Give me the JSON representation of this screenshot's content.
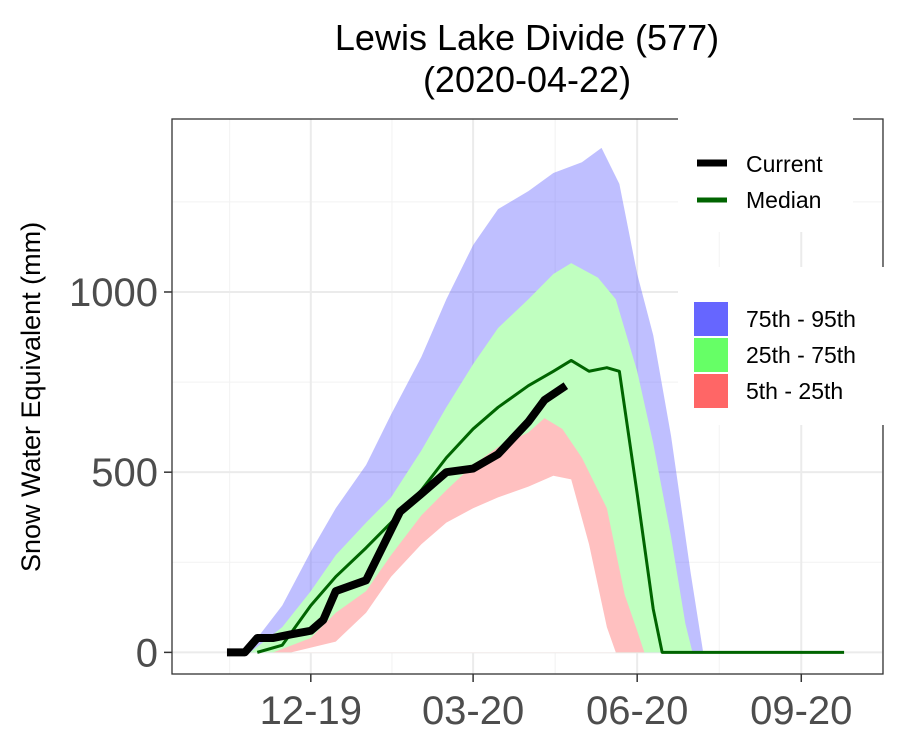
{
  "chart_data": {
    "type": "area",
    "title_line1": "Lewis Lake Divide (577)",
    "title_line2": "(2020-04-22)",
    "xlabel": "",
    "ylabel": "Snow Water Equivalent (mm)",
    "x_axis": {
      "start": "2019-10-01",
      "end": "2020-09-30",
      "ticks": [
        "2019-12-01",
        "2020-03-01",
        "2020-06-01",
        "2020-09-01"
      ],
      "tick_labels": [
        "12-19",
        "03-20",
        "06-20",
        "09-20"
      ]
    },
    "ylim": [
      -60,
      1480
    ],
    "y_ticks": [
      0,
      500,
      1000
    ],
    "grid": true,
    "legend": {
      "placement": "top-right",
      "lines": [
        {
          "label": "Current",
          "color": "#000000"
        },
        {
          "label": "Median",
          "color": "#006400"
        }
      ],
      "bands": [
        {
          "label": "75th - 95th",
          "color": "#6666ff"
        },
        {
          "label": "25th - 75th",
          "color": "#66ff66"
        },
        {
          "label": "5th - 25th",
          "color": "#ff6666"
        }
      ]
    },
    "bands": {
      "p95": [
        {
          "x": "2019-10-25",
          "y": 0
        },
        {
          "x": "2019-11-01",
          "y": 40
        },
        {
          "x": "2019-11-15",
          "y": 130
        },
        {
          "x": "2019-12-01",
          "y": 280
        },
        {
          "x": "2019-12-15",
          "y": 400
        },
        {
          "x": "2020-01-01",
          "y": 520
        },
        {
          "x": "2020-01-15",
          "y": 660
        },
        {
          "x": "2020-02-01",
          "y": 820
        },
        {
          "x": "2020-02-15",
          "y": 980
        },
        {
          "x": "2020-03-01",
          "y": 1130
        },
        {
          "x": "2020-03-15",
          "y": 1230
        },
        {
          "x": "2020-04-01",
          "y": 1280
        },
        {
          "x": "2020-04-15",
          "y": 1330
        },
        {
          "x": "2020-05-01",
          "y": 1360
        },
        {
          "x": "2020-05-12",
          "y": 1400
        },
        {
          "x": "2020-05-22",
          "y": 1300
        },
        {
          "x": "2020-06-01",
          "y": 1050
        },
        {
          "x": "2020-06-10",
          "y": 880
        },
        {
          "x": "2020-06-20",
          "y": 600
        },
        {
          "x": "2020-07-01",
          "y": 220
        },
        {
          "x": "2020-07-08",
          "y": 0
        }
      ],
      "p75": [
        {
          "x": "2019-10-28",
          "y": 0
        },
        {
          "x": "2019-11-15",
          "y": 70
        },
        {
          "x": "2019-12-01",
          "y": 170
        },
        {
          "x": "2019-12-15",
          "y": 270
        },
        {
          "x": "2020-01-01",
          "y": 360
        },
        {
          "x": "2020-01-15",
          "y": 430
        },
        {
          "x": "2020-02-01",
          "y": 560
        },
        {
          "x": "2020-02-15",
          "y": 680
        },
        {
          "x": "2020-03-01",
          "y": 800
        },
        {
          "x": "2020-03-15",
          "y": 900
        },
        {
          "x": "2020-04-01",
          "y": 980
        },
        {
          "x": "2020-04-15",
          "y": 1050
        },
        {
          "x": "2020-04-25",
          "y": 1080
        },
        {
          "x": "2020-05-10",
          "y": 1040
        },
        {
          "x": "2020-05-20",
          "y": 980
        },
        {
          "x": "2020-06-01",
          "y": 780
        },
        {
          "x": "2020-06-10",
          "y": 580
        },
        {
          "x": "2020-06-20",
          "y": 320
        },
        {
          "x": "2020-06-28",
          "y": 80
        },
        {
          "x": "2020-07-02",
          "y": 0
        }
      ],
      "p25": [
        {
          "x": "2019-11-10",
          "y": 0
        },
        {
          "x": "2019-12-01",
          "y": 40
        },
        {
          "x": "2019-12-15",
          "y": 110
        },
        {
          "x": "2020-01-01",
          "y": 170
        },
        {
          "x": "2020-01-15",
          "y": 270
        },
        {
          "x": "2020-02-01",
          "y": 380
        },
        {
          "x": "2020-02-15",
          "y": 450
        },
        {
          "x": "2020-03-01",
          "y": 520
        },
        {
          "x": "2020-03-15",
          "y": 570
        },
        {
          "x": "2020-04-01",
          "y": 610
        },
        {
          "x": "2020-04-10",
          "y": 650
        },
        {
          "x": "2020-04-20",
          "y": 620
        },
        {
          "x": "2020-05-01",
          "y": 540
        },
        {
          "x": "2020-05-15",
          "y": 400
        },
        {
          "x": "2020-05-25",
          "y": 160
        },
        {
          "x": "2020-06-01",
          "y": 60
        },
        {
          "x": "2020-06-05",
          "y": 0
        }
      ],
      "p5": [
        {
          "x": "2019-11-20",
          "y": 0
        },
        {
          "x": "2019-12-15",
          "y": 30
        },
        {
          "x": "2020-01-01",
          "y": 110
        },
        {
          "x": "2020-01-15",
          "y": 210
        },
        {
          "x": "2020-02-01",
          "y": 300
        },
        {
          "x": "2020-02-15",
          "y": 360
        },
        {
          "x": "2020-03-01",
          "y": 400
        },
        {
          "x": "2020-03-15",
          "y": 430
        },
        {
          "x": "2020-04-01",
          "y": 460
        },
        {
          "x": "2020-04-15",
          "y": 490
        },
        {
          "x": "2020-04-25",
          "y": 480
        },
        {
          "x": "2020-05-05",
          "y": 300
        },
        {
          "x": "2020-05-15",
          "y": 70
        },
        {
          "x": "2020-05-20",
          "y": 0
        }
      ]
    },
    "series": [
      {
        "name": "Median",
        "color": "#006400",
        "points": [
          {
            "x": "2019-11-01",
            "y": 0
          },
          {
            "x": "2019-11-15",
            "y": 20
          },
          {
            "x": "2019-12-01",
            "y": 130
          },
          {
            "x": "2019-12-15",
            "y": 210
          },
          {
            "x": "2020-01-01",
            "y": 290
          },
          {
            "x": "2020-01-15",
            "y": 360
          },
          {
            "x": "2020-02-01",
            "y": 450
          },
          {
            "x": "2020-02-15",
            "y": 540
          },
          {
            "x": "2020-03-01",
            "y": 620
          },
          {
            "x": "2020-03-15",
            "y": 680
          },
          {
            "x": "2020-04-01",
            "y": 740
          },
          {
            "x": "2020-04-15",
            "y": 780
          },
          {
            "x": "2020-04-25",
            "y": 810
          },
          {
            "x": "2020-05-05",
            "y": 780
          },
          {
            "x": "2020-05-15",
            "y": 790
          },
          {
            "x": "2020-05-22",
            "y": 780
          },
          {
            "x": "2020-06-01",
            "y": 440
          },
          {
            "x": "2020-06-10",
            "y": 120
          },
          {
            "x": "2020-06-15",
            "y": 0
          },
          {
            "x": "2020-09-25",
            "y": 0
          }
        ]
      },
      {
        "name": "Current",
        "color": "#000000",
        "points": [
          {
            "x": "2019-10-15",
            "y": 0
          },
          {
            "x": "2019-10-25",
            "y": 0
          },
          {
            "x": "2019-11-01",
            "y": 40
          },
          {
            "x": "2019-11-10",
            "y": 40
          },
          {
            "x": "2019-11-20",
            "y": 50
          },
          {
            "x": "2019-12-01",
            "y": 60
          },
          {
            "x": "2019-12-08",
            "y": 90
          },
          {
            "x": "2019-12-15",
            "y": 170
          },
          {
            "x": "2020-01-01",
            "y": 200
          },
          {
            "x": "2020-01-10",
            "y": 290
          },
          {
            "x": "2020-01-20",
            "y": 390
          },
          {
            "x": "2020-02-01",
            "y": 440
          },
          {
            "x": "2020-02-15",
            "y": 500
          },
          {
            "x": "2020-03-01",
            "y": 510
          },
          {
            "x": "2020-03-15",
            "y": 550
          },
          {
            "x": "2020-04-01",
            "y": 640
          },
          {
            "x": "2020-04-10",
            "y": 700
          },
          {
            "x": "2020-04-22",
            "y": 740
          }
        ]
      }
    ]
  }
}
